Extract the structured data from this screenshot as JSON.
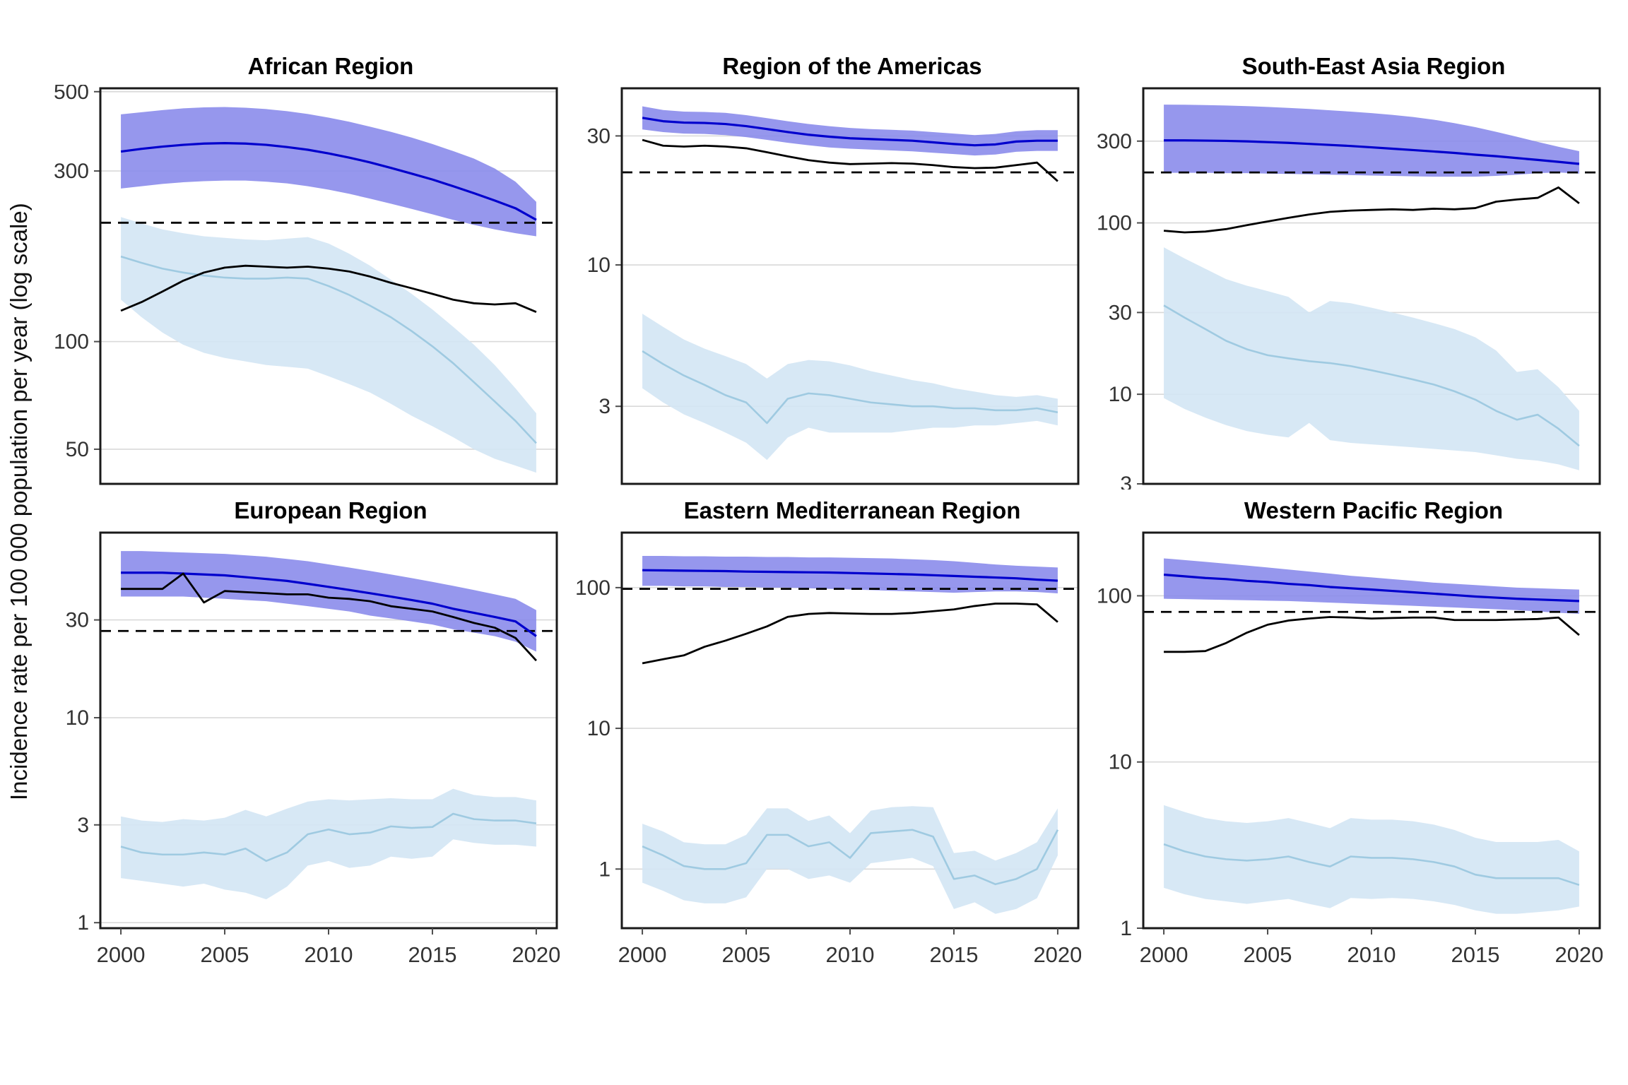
{
  "figure": {
    "y_axis_label": "Incidence rate per 100 000 population per year (log scale)",
    "colors": {
      "estimate_line": "#0000CD",
      "estimate_ribbon": "#8889EA",
      "secondary_line": "#9FCAE1",
      "secondary_ribbon": "#D3E6F4",
      "notified_line": "#000000",
      "target_dashed_line": "#000000",
      "gridline": "#D9D9D9",
      "panel_border": "#1A1A1A",
      "tick_mark": "#4D4D4D",
      "tick_text": "#333333"
    }
  },
  "chart_data": {
    "type": "line",
    "title": "",
    "xlabel": "",
    "ylabel": "Incidence rate per 100 000 population per year (log scale)",
    "x_scale": "linear",
    "y_scale": "log",
    "grid": "horizontal-only",
    "legend": "none",
    "years": [
      2000,
      2001,
      2002,
      2003,
      2004,
      2005,
      2006,
      2007,
      2008,
      2009,
      2010,
      2011,
      2012,
      2013,
      2014,
      2015,
      2016,
      2017,
      2018,
      2019,
      2020
    ],
    "x_label_ticks": [
      2000,
      2005,
      2010,
      2015,
      2020
    ],
    "xlim": [
      1999.1,
      2020.9
    ],
    "panels": [
      {
        "title": "African Region",
        "y_ticks": [
          500,
          300,
          100,
          50
        ],
        "ylim": [
          40,
          511
        ],
        "dashed_line_y": 215,
        "blue_line": [
          340,
          346,
          351,
          355,
          358,
          359,
          358,
          355,
          350,
          344,
          336,
          327,
          317,
          306,
          295,
          284,
          272,
          260,
          248,
          236,
          219
        ],
        "blue_ribbon_hi": [
          432,
          438,
          444,
          449,
          452,
          453,
          451,
          447,
          441,
          433,
          423,
          412,
          399,
          386,
          372,
          357,
          341,
          325,
          305,
          280,
          246
        ],
        "blue_ribbon_lo": [
          268,
          272,
          276,
          279,
          281,
          282,
          282,
          280,
          277,
          272,
          266,
          259,
          251,
          243,
          235,
          227,
          219,
          212,
          206,
          201,
          197
        ],
        "black_line": [
          122,
          129,
          138,
          148,
          156,
          161,
          163,
          162,
          161,
          162,
          160,
          157,
          152,
          146,
          141,
          136,
          131,
          128,
          127,
          128,
          121
        ],
        "light_blue_line": [
          173,
          166,
          160,
          156,
          153,
          151,
          150,
          150,
          151,
          150,
          143,
          135,
          126,
          117,
          107,
          97,
          87,
          77,
          68,
          60,
          52
        ],
        "light_blue_ribbon_hi": [
          223,
          214,
          206,
          201,
          197,
          195,
          193,
          192,
          194,
          196,
          188,
          176,
          163,
          149,
          136,
          123,
          110,
          98,
          86,
          74,
          63
        ],
        "light_blue_ribbon_lo": [
          131,
          117,
          106,
          98,
          93,
          90,
          88,
          86,
          85,
          84,
          80,
          76,
          72,
          67,
          62,
          58,
          54,
          50,
          47,
          45,
          43
        ]
      },
      {
        "title": "Region of the Americas",
        "y_ticks": [
          30,
          10,
          3
        ],
        "ylim": [
          1.55,
          45
        ],
        "dashed_line_y": 22,
        "blue_line": [
          35,
          34,
          33.6,
          33.5,
          33.2,
          32.6,
          31.8,
          31,
          30.3,
          29.8,
          29.4,
          29.2,
          29,
          28.8,
          28.4,
          28,
          27.7,
          27.9,
          28.6,
          28.8,
          28.8
        ],
        "blue_ribbon_hi": [
          38.6,
          37.4,
          36.9,
          36.8,
          36.5,
          35.8,
          34.9,
          34,
          33.2,
          32.6,
          32.1,
          31.8,
          31.6,
          31.4,
          31,
          30.6,
          30.2,
          30.5,
          31.2,
          31.5,
          31.5
        ],
        "blue_ribbon_lo": [
          31.7,
          31,
          30.6,
          30.5,
          30.2,
          29.7,
          29,
          28.3,
          27.7,
          27.2,
          26.9,
          26.7,
          26.5,
          26.3,
          26,
          25.7,
          25.4,
          25.6,
          26.2,
          26.4,
          26.4
        ],
        "black_line": [
          29,
          27.6,
          27.4,
          27.6,
          27.4,
          27,
          26.1,
          25.2,
          24.4,
          23.9,
          23.6,
          23.7,
          23.8,
          23.7,
          23.4,
          23,
          22.8,
          22.9,
          23.4,
          23.9,
          20.4
        ],
        "light_blue_line": [
          4.8,
          4.3,
          3.9,
          3.6,
          3.3,
          3.1,
          2.6,
          3.2,
          3.35,
          3.3,
          3.2,
          3.1,
          3.05,
          3,
          3,
          2.95,
          2.95,
          2.9,
          2.9,
          2.95,
          2.85
        ],
        "light_blue_ribbon_hi": [
          6.6,
          5.9,
          5.3,
          4.9,
          4.6,
          4.3,
          3.8,
          4.3,
          4.45,
          4.4,
          4.25,
          4.05,
          3.9,
          3.75,
          3.65,
          3.5,
          3.4,
          3.3,
          3.25,
          3.3,
          3.2
        ],
        "light_blue_ribbon_lo": [
          3.5,
          3.1,
          2.8,
          2.6,
          2.4,
          2.2,
          1.9,
          2.3,
          2.5,
          2.4,
          2.4,
          2.4,
          2.4,
          2.45,
          2.5,
          2.5,
          2.55,
          2.55,
          2.6,
          2.65,
          2.55
        ]
      },
      {
        "title": "South-East Asia Region",
        "y_ticks": [
          300,
          100,
          30,
          10,
          3
        ],
        "ylim": [
          3,
          610
        ],
        "dashed_line_y": 197,
        "blue_line": [
          303,
          303,
          302,
          301,
          299,
          296,
          293,
          289,
          285,
          281,
          276,
          271,
          266,
          261,
          256,
          250,
          245,
          239,
          233,
          227,
          221
        ],
        "blue_ribbon_hi": [
          490,
          489,
          487,
          484,
          480,
          475,
          469,
          462,
          454,
          446,
          437,
          427,
          415,
          400,
          382,
          362,
          340,
          318,
          297,
          278,
          262
        ],
        "blue_ribbon_lo": [
          196,
          196,
          196,
          195,
          195,
          194,
          193,
          192,
          191,
          190,
          189,
          188,
          187,
          186,
          186,
          186,
          188,
          191,
          195,
          197,
          194
        ],
        "black_line": [
          90,
          88,
          89,
          92,
          97,
          102,
          107,
          112,
          116,
          118,
          119,
          120,
          119,
          121,
          120,
          122,
          133,
          137,
          140,
          161,
          130
        ],
        "light_blue_line": [
          33,
          28,
          24,
          20.5,
          18.3,
          16.9,
          16.2,
          15.6,
          15.2,
          14.6,
          13.8,
          13,
          12.2,
          11.4,
          10.4,
          9.3,
          8,
          7.1,
          7.6,
          6.3,
          5
        ],
        "light_blue_ribbon_hi": [
          72,
          62,
          54,
          47,
          43,
          40,
          37,
          30,
          35,
          34,
          32,
          30,
          28,
          26,
          24,
          21.5,
          18,
          13.5,
          14,
          11,
          8
        ],
        "light_blue_ribbon_lo": [
          9.5,
          8.2,
          7.3,
          6.6,
          6.1,
          5.8,
          5.6,
          6.8,
          5.4,
          5.2,
          5.1,
          5,
          4.9,
          4.8,
          4.7,
          4.6,
          4.4,
          4.2,
          4.1,
          3.9,
          3.6
        ]
      },
      {
        "title": "European Region",
        "y_ticks": [
          30,
          10,
          3,
          1
        ],
        "ylim": [
          0.94,
          80
        ],
        "dashed_line_y": 26.5,
        "blue_line": [
          51,
          51,
          51,
          50.5,
          50,
          49.5,
          48.5,
          47.5,
          46.5,
          45,
          43.5,
          42,
          40.5,
          39,
          37.5,
          36,
          34,
          32.5,
          31,
          29.5,
          25
        ],
        "blue_ribbon_hi": [
          65,
          65,
          64.5,
          64,
          63.5,
          63,
          62,
          61,
          59.5,
          58,
          56,
          54,
          52,
          50,
          48,
          46,
          44,
          42,
          40,
          38,
          33.5
        ],
        "blue_ribbon_lo": [
          39,
          39,
          39,
          39,
          38.5,
          38,
          37.5,
          37,
          36,
          35,
          34,
          33,
          31.5,
          30.5,
          29.5,
          28.5,
          27,
          26,
          25,
          23.5,
          21
        ],
        "black_line": [
          42.5,
          42.5,
          42.5,
          50.5,
          36.5,
          41.5,
          41,
          40.5,
          40,
          40,
          38.5,
          38,
          37,
          35,
          34,
          33,
          31,
          29,
          27.5,
          24.5,
          19
        ],
        "light_blue_line": [
          2.35,
          2.2,
          2.15,
          2.15,
          2.2,
          2.15,
          2.3,
          2,
          2.2,
          2.7,
          2.85,
          2.7,
          2.75,
          2.95,
          2.9,
          2.93,
          3.4,
          3.2,
          3.15,
          3.15,
          3.05
        ],
        "light_blue_ribbon_hi": [
          3.3,
          3.15,
          3.1,
          3.2,
          3.15,
          3.25,
          3.55,
          3.3,
          3.6,
          3.9,
          4,
          3.95,
          4,
          4.05,
          4,
          4,
          4.5,
          4.2,
          4.1,
          4.1,
          3.95
        ],
        "light_blue_ribbon_lo": [
          1.65,
          1.6,
          1.55,
          1.5,
          1.55,
          1.45,
          1.4,
          1.3,
          1.5,
          1.9,
          2,
          1.85,
          1.9,
          2.1,
          2.05,
          2.1,
          2.55,
          2.45,
          2.4,
          2.4,
          2.35
        ]
      },
      {
        "title": "Eastern Mediterranean Region",
        "y_ticks": [
          100,
          10,
          1
        ],
        "ylim": [
          0.38,
          246
        ],
        "dashed_line_y": 98,
        "blue_line": [
          133,
          132.5,
          132,
          131.5,
          131,
          130,
          129.5,
          129,
          128.5,
          128,
          127,
          126,
          125,
          124,
          122.5,
          121,
          119.5,
          118,
          116.5,
          114,
          112
        ],
        "blue_ribbon_hi": [
          168,
          168,
          167,
          167,
          166,
          166,
          165,
          165,
          164,
          164,
          163,
          162,
          161,
          159,
          157,
          154,
          150,
          146,
          143,
          141,
          139
        ],
        "blue_ribbon_lo": [
          103,
          103,
          102,
          102,
          101,
          101,
          100,
          100,
          99,
          98,
          97,
          96,
          95,
          94,
          93,
          92,
          93,
          94,
          94,
          93,
          91
        ],
        "black_line": [
          29,
          31,
          33,
          38,
          42,
          47,
          53,
          62,
          65,
          66,
          65.5,
          65,
          65,
          66,
          68,
          70,
          74,
          77,
          77,
          76,
          57
        ],
        "light_blue_line": [
          1.45,
          1.25,
          1.05,
          1,
          1,
          1.1,
          1.75,
          1.75,
          1.45,
          1.55,
          1.2,
          1.8,
          1.85,
          1.9,
          1.7,
          0.85,
          0.9,
          0.78,
          0.85,
          1,
          1.9
        ],
        "light_blue_ribbon_hi": [
          2.1,
          1.85,
          1.55,
          1.5,
          1.5,
          1.75,
          2.7,
          2.7,
          2.2,
          2.4,
          1.8,
          2.6,
          2.75,
          2.8,
          2.75,
          1.3,
          1.35,
          1.15,
          1.3,
          1.55,
          2.7
        ],
        "light_blue_ribbon_lo": [
          0.8,
          0.7,
          0.6,
          0.57,
          0.57,
          0.63,
          1,
          1,
          0.85,
          0.9,
          0.8,
          1.1,
          1.15,
          1.2,
          1.05,
          0.52,
          0.58,
          0.48,
          0.52,
          0.62,
          1.25
        ]
      },
      {
        "title": "Western Pacific Region",
        "y_ticks": [
          100,
          10,
          1
        ],
        "ylim": [
          1,
          240
        ],
        "dashed_line_y": 80,
        "blue_line": [
          134,
          131,
          128,
          126,
          123,
          121,
          118,
          116,
          113,
          111,
          109,
          107,
          105,
          103,
          101,
          99,
          97.5,
          96,
          95,
          94,
          93
        ],
        "blue_ribbon_hi": [
          168,
          164,
          160,
          156,
          152,
          148,
          144,
          140,
          136,
          132,
          129,
          126,
          123,
          120,
          118,
          116,
          114,
          112,
          111,
          110,
          109
        ],
        "blue_ribbon_lo": [
          96,
          95.5,
          95,
          94.5,
          94,
          93.5,
          93,
          92,
          91,
          90,
          89,
          88,
          87,
          86,
          85,
          84,
          83,
          82,
          80.5,
          79,
          78
        ],
        "black_line": [
          46,
          46,
          46.5,
          52,
          60,
          67,
          71,
          73,
          74.5,
          74,
          73,
          73.5,
          74,
          74,
          71.5,
          71.5,
          71.5,
          72,
          72.5,
          74,
          58
        ],
        "light_blue_line": [
          3.2,
          2.9,
          2.7,
          2.6,
          2.55,
          2.6,
          2.7,
          2.5,
          2.35,
          2.7,
          2.65,
          2.65,
          2.6,
          2.5,
          2.35,
          2.1,
          2,
          2,
          2,
          2,
          1.82
        ],
        "light_blue_ribbon_hi": [
          5.5,
          5,
          4.6,
          4.4,
          4.3,
          4.4,
          4.6,
          4.3,
          4,
          4.6,
          4.5,
          4.5,
          4.4,
          4.2,
          3.9,
          3.5,
          3.3,
          3.3,
          3.3,
          3.4,
          2.9
        ],
        "light_blue_ribbon_lo": [
          1.75,
          1.6,
          1.5,
          1.45,
          1.4,
          1.45,
          1.5,
          1.4,
          1.32,
          1.52,
          1.5,
          1.52,
          1.5,
          1.45,
          1.38,
          1.28,
          1.22,
          1.22,
          1.25,
          1.28,
          1.35
        ]
      }
    ]
  }
}
